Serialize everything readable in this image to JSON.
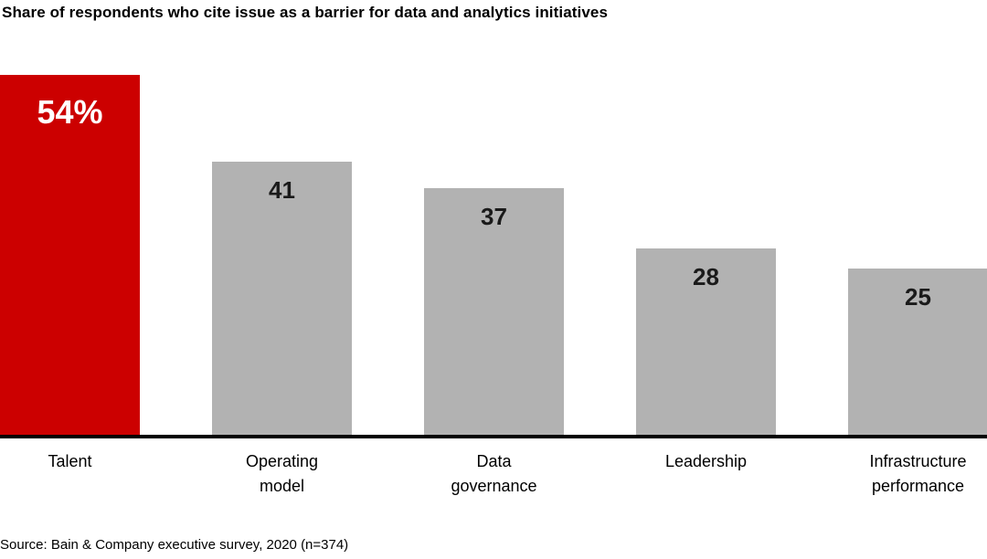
{
  "title": "Share of respondents who cite issue as a barrier for data and analytics initiatives",
  "source": "Source: Bain & Company executive survey, 2020 (n=374)",
  "colors": {
    "highlight": "#cc0000",
    "bar": "#b2b2b2",
    "axis": "#000000",
    "highlight_value_text": "#ffffff",
    "value_text": "#1a1a1a"
  },
  "chart_data": {
    "type": "bar",
    "title": "Share of respondents who cite issue as a barrier for data and analytics initiatives",
    "categories": [
      "Talent",
      "Operating model",
      "Data governance",
      "Leadership",
      "Infrastructure performance"
    ],
    "values": [
      54,
      41,
      37,
      28,
      25
    ],
    "value_labels": [
      "54%",
      "41",
      "37",
      "28",
      "25"
    ],
    "unit": "percent of respondents",
    "highlight_index": 0,
    "ylim": [
      0,
      54
    ],
    "grid": false,
    "legend": false,
    "xlabel": "",
    "ylabel": "",
    "source": "Source: Bain & Company executive survey, 2020 (n=374)"
  }
}
